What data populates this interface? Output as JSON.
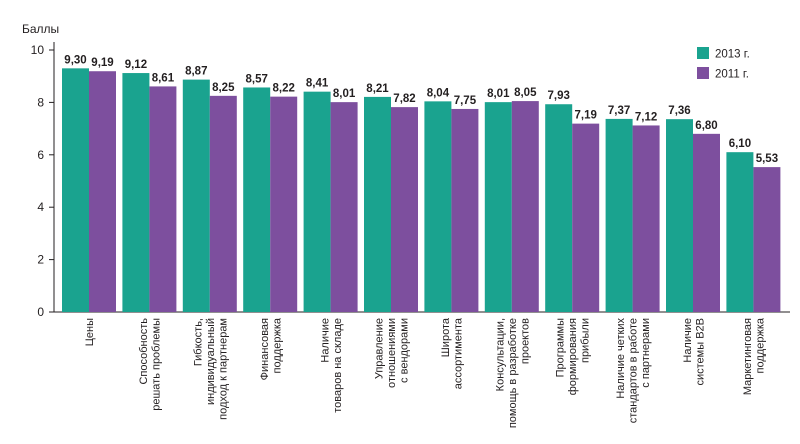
{
  "chart_data": {
    "type": "bar",
    "title": "",
    "xlabel": "",
    "ylabel": "Баллы",
    "ylim": [
      0,
      10
    ],
    "yticks": [
      "0",
      "2",
      "4",
      "6",
      "8",
      "10"
    ],
    "grid": false,
    "legend_position": "top-right",
    "categories": [
      [
        "Цены"
      ],
      [
        "Способность",
        "решать проблемы"
      ],
      [
        "Гибкость,",
        "индивидуальный",
        "подход к партнерам"
      ],
      [
        "Финансовая",
        "поддержка"
      ],
      [
        "Наличие",
        "товаров на складе"
      ],
      [
        "Управление",
        "отношениями",
        "с вендорами"
      ],
      [
        "Широта",
        "ассортимента"
      ],
      [
        "Консультации,",
        "помощь в разработке",
        "проектов"
      ],
      [
        "Программы",
        "формирования",
        "прибыли"
      ],
      [
        "Наличие четких",
        "стандартов в работе",
        "с партнерами"
      ],
      [
        "Наличие",
        "системы B2B"
      ],
      [
        "Маркетинговая",
        "поддержка"
      ]
    ],
    "series": [
      {
        "name": "2013 г.",
        "color": "#1aa38f",
        "values": [
          9.3,
          9.12,
          8.87,
          8.57,
          8.41,
          8.21,
          8.04,
          8.01,
          7.93,
          7.37,
          7.36,
          6.1
        ],
        "labels": [
          "9,30",
          "9,12",
          "8,87",
          "8,57",
          "8,41",
          "8,21",
          "8,04",
          "8,01",
          "7,93",
          "7,37",
          "7,36",
          "6,10"
        ]
      },
      {
        "name": "2011 г.",
        "color": "#7d4f9e",
        "values": [
          9.19,
          8.61,
          8.25,
          8.22,
          8.01,
          7.82,
          7.75,
          8.05,
          7.19,
          7.12,
          6.8,
          5.53
        ],
        "labels": [
          "9,19",
          "8,61",
          "8,25",
          "8,22",
          "8,01",
          "7,82",
          "7,75",
          "8,05",
          "7,19",
          "7,12",
          "6,80",
          "5,53"
        ]
      }
    ]
  }
}
